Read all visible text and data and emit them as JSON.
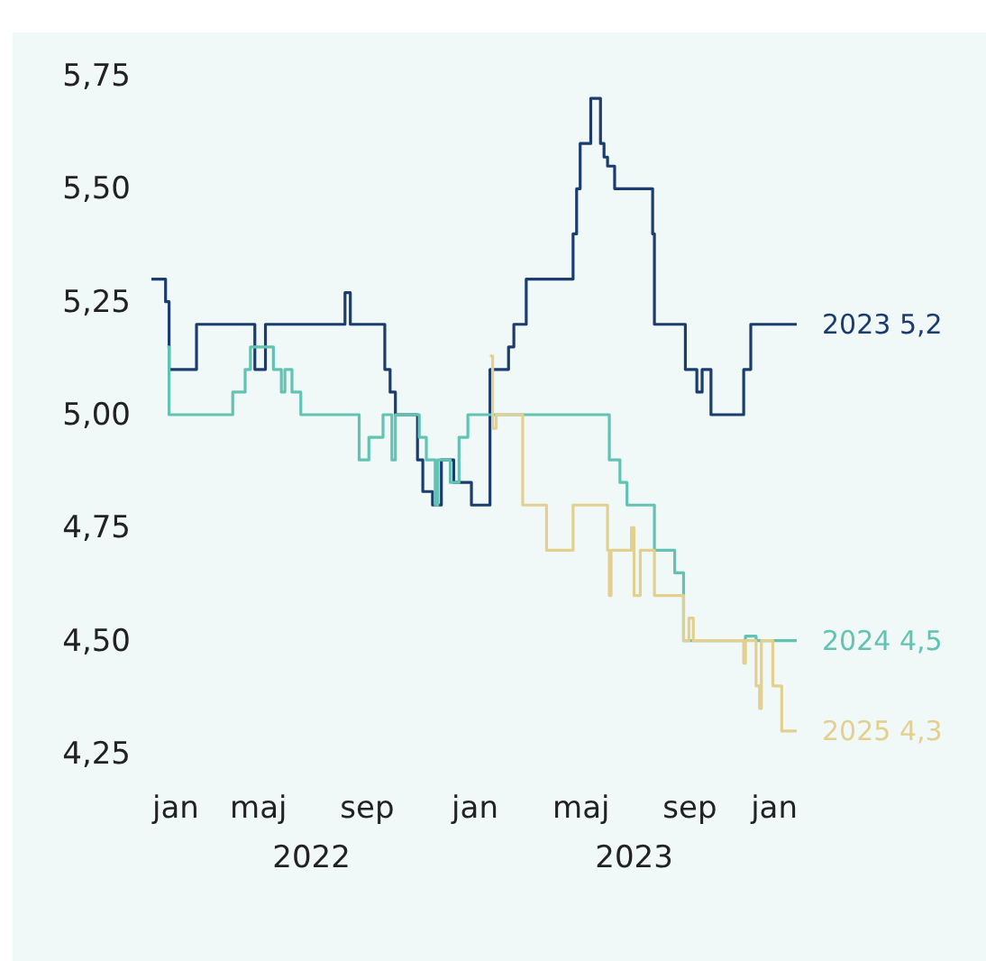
{
  "chart_data": {
    "type": "step",
    "legend": false,
    "grid": false,
    "xlim": [
      "2022-01-01",
      "2024-01-01"
    ],
    "xticks": [
      {
        "value": "2022-01",
        "label": "jan"
      },
      {
        "value": "2022-05",
        "label": "maj"
      },
      {
        "value": "2022-09",
        "label": "sep"
      },
      {
        "value": "2023-01",
        "label": "jan"
      },
      {
        "value": "2023-05",
        "label": "maj"
      },
      {
        "value": "2023-09",
        "label": "sep"
      },
      {
        "value": "2024-01",
        "label": "jan"
      }
    ],
    "ylim": [
      4.25,
      5.75
    ],
    "yticks": [
      {
        "value": 4.25,
        "label": "4,25"
      },
      {
        "value": 4.5,
        "label": "4,50"
      },
      {
        "value": 4.75,
        "label": "4,75"
      },
      {
        "value": 5,
        "label": "5,00"
      },
      {
        "value": 5.25,
        "label": "5,25"
      },
      {
        "value": 5.5,
        "label": "5,50"
      },
      {
        "value": 5.75,
        "label": "5,75"
      }
    ],
    "annotations": [
      "2022",
      "2023"
    ],
    "series": [
      {
        "name": "2023 5,2",
        "color": "#1b3c6e",
        "x": [
          "2022-01-01",
          "2022-01-17",
          "2022-01-21",
          "2022-02-21",
          "2022-04-28",
          "2022-05-10",
          "2022-08-08",
          "2022-08-14",
          "2022-09-22",
          "2022-09-28",
          "2022-10-04",
          "2022-10-29",
          "2022-11-04",
          "2022-11-15",
          "2022-11-25",
          "2022-12-09",
          "2022-12-29",
          "2023-01-19",
          "2023-02-09",
          "2023-02-15",
          "2023-03-01",
          "2023-04-23",
          "2023-04-27",
          "2023-05-01",
          "2023-05-13",
          "2023-05-24",
          "2023-05-28",
          "2023-06-01",
          "2023-06-09",
          "2023-07-22",
          "2023-07-24",
          "2023-08-28",
          "2023-09-10",
          "2023-09-16",
          "2023-09-26",
          "2023-11-02",
          "2023-11-10",
          "2024-01-01"
        ],
        "values": [
          5.3,
          5.25,
          5.1,
          5.2,
          5.1,
          5.2,
          5.27,
          5.2,
          5.1,
          5.05,
          5.0,
          4.9,
          4.83,
          4.8,
          4.9,
          4.85,
          4.8,
          5.1,
          5.15,
          5.2,
          5.3,
          5.4,
          5.5,
          5.6,
          5.7,
          5.6,
          5.57,
          5.55,
          5.5,
          5.4,
          5.2,
          5.1,
          5.05,
          5.1,
          5.0,
          5.1,
          5.2,
          5.2
        ]
      },
      {
        "name": "2024 4,5",
        "color": "#62c3b3",
        "x": [
          "2022-01-19",
          "2022-01-21",
          "2022-04-03",
          "2022-04-17",
          "2022-04-23",
          "2022-05-19",
          "2022-05-28",
          "2022-06-01",
          "2022-06-09",
          "2022-06-19",
          "2022-08-24",
          "2022-09-04",
          "2022-09-20",
          "2022-09-30",
          "2022-10-04",
          "2022-10-31",
          "2022-11-08",
          "2022-11-18",
          "2022-11-21",
          "2022-12-05",
          "2022-12-15",
          "2022-12-25",
          "2023-06-03",
          "2023-06-15",
          "2023-06-23",
          "2023-07-24",
          "2023-08-16",
          "2023-08-26",
          "2023-11-04",
          "2023-11-16",
          "2024-01-01"
        ],
        "values": [
          5.15,
          5.0,
          5.05,
          5.1,
          5.15,
          5.1,
          5.05,
          5.1,
          5.05,
          5.0,
          4.9,
          4.95,
          5.0,
          4.9,
          5.0,
          4.95,
          4.9,
          4.8,
          4.9,
          4.85,
          4.95,
          5.0,
          4.9,
          4.85,
          4.8,
          4.7,
          4.65,
          4.5,
          4.51,
          4.5,
          4.5
        ]
      },
      {
        "name": "2025 4,3",
        "color": "#e3d08e",
        "x": [
          "2023-01-19",
          "2023-01-22",
          "2023-01-26",
          "2023-02-25",
          "2023-03-24",
          "2023-04-23",
          "2023-06-01",
          "2023-06-03",
          "2023-06-05",
          "2023-06-28",
          "2023-07-01",
          "2023-07-08",
          "2023-07-24",
          "2023-08-26",
          "2023-09-01",
          "2023-09-06",
          "2023-11-02",
          "2023-11-04",
          "2023-11-16",
          "2023-11-20",
          "2023-11-22",
          "2023-12-05",
          "2023-12-15",
          "2024-01-01"
        ],
        "values": [
          5.13,
          4.97,
          5.0,
          4.8,
          4.7,
          4.8,
          4.7,
          4.6,
          4.7,
          4.75,
          4.6,
          4.7,
          4.6,
          4.5,
          4.55,
          4.5,
          4.45,
          4.5,
          4.4,
          4.35,
          4.5,
          4.4,
          4.3,
          4.3
        ]
      }
    ]
  }
}
